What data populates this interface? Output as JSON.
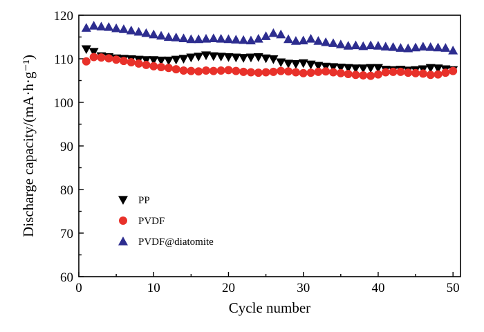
{
  "chart_data": {
    "type": "scatter",
    "xlabel": "Cycle number",
    "ylabel": "Discharge capacity/(mA·h·g⁻¹)",
    "xlim": [
      0,
      51
    ],
    "ylim": [
      60,
      120
    ],
    "xticks": [
      0,
      10,
      20,
      30,
      40,
      50
    ],
    "yticks": [
      60,
      70,
      80,
      90,
      100,
      110,
      120
    ],
    "x_minor_step": 5,
    "y_minor_step": 5,
    "grid": false,
    "legend_position": "lower-left",
    "x": [
      1,
      2,
      3,
      4,
      5,
      6,
      7,
      8,
      9,
      10,
      11,
      12,
      13,
      14,
      15,
      16,
      17,
      18,
      19,
      20,
      21,
      22,
      23,
      24,
      25,
      26,
      27,
      28,
      29,
      30,
      31,
      32,
      33,
      34,
      35,
      36,
      37,
      38,
      39,
      40,
      41,
      42,
      43,
      44,
      45,
      46,
      47,
      48,
      49,
      50
    ],
    "series": [
      {
        "name": "PP",
        "marker": "triangle-down",
        "color": "#000000",
        "values": [
          112.2,
          111.6,
          110.6,
          110.4,
          110.1,
          110.0,
          109.9,
          109.8,
          109.7,
          109.7,
          109.6,
          109.6,
          109.8,
          110.0,
          110.3,
          110.5,
          110.8,
          110.6,
          110.5,
          110.4,
          110.3,
          110.2,
          110.3,
          110.4,
          110.1,
          109.9,
          109.2,
          108.9,
          108.8,
          109.0,
          108.7,
          108.4,
          108.2,
          108.1,
          108.0,
          107.9,
          107.8,
          107.8,
          107.9,
          107.9,
          107.5,
          107.4,
          107.5,
          107.3,
          107.4,
          107.6,
          107.9,
          107.8,
          107.6,
          107.4
        ]
      },
      {
        "name": "PVDF",
        "color": "#e8312a",
        "marker": "circle",
        "values": [
          109.4,
          110.4,
          110.3,
          110.1,
          109.8,
          109.5,
          109.2,
          108.9,
          108.6,
          108.3,
          108.1,
          107.9,
          107.6,
          107.3,
          107.2,
          107.1,
          107.3,
          107.2,
          107.3,
          107.4,
          107.2,
          107.0,
          106.9,
          106.8,
          106.9,
          107.0,
          107.2,
          107.1,
          106.9,
          106.7,
          106.8,
          107.0,
          107.1,
          106.9,
          106.7,
          106.5,
          106.3,
          106.2,
          106.1,
          106.4,
          106.9,
          107.0,
          107.0,
          106.8,
          106.7,
          106.6,
          106.3,
          106.4,
          106.8,
          107.2
        ]
      },
      {
        "name": "PVDF@diatomite",
        "color": "#2d2d8f",
        "marker": "triangle-up",
        "values": [
          117.1,
          117.6,
          117.4,
          117.3,
          117.0,
          116.8,
          116.5,
          116.2,
          115.9,
          115.6,
          115.3,
          115.0,
          114.9,
          114.7,
          114.5,
          114.5,
          114.6,
          114.7,
          114.6,
          114.5,
          114.4,
          114.3,
          114.2,
          114.6,
          115.2,
          115.9,
          115.6,
          114.5,
          114.1,
          114.2,
          114.6,
          114.1,
          113.8,
          113.6,
          113.3,
          113.0,
          113.1,
          112.9,
          113.1,
          113.0,
          112.8,
          112.7,
          112.5,
          112.4,
          112.6,
          112.8,
          112.7,
          112.6,
          112.5,
          111.9
        ]
      }
    ]
  }
}
